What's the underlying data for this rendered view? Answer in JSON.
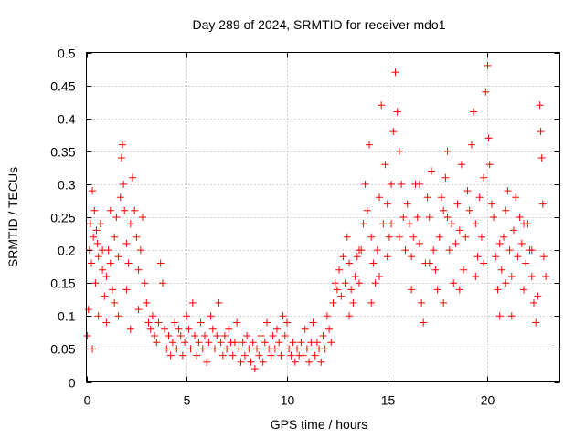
{
  "chart_data": {
    "type": "scatter",
    "title": "Day 289 of 2024, SRMTID for receiver mdo1",
    "xlabel": "GPS time / hours",
    "ylabel": "SRMTID / TECUs",
    "xlim": [
      0,
      23.6
    ],
    "ylim": [
      0,
      0.5
    ],
    "x_ticks": [
      0,
      5,
      10,
      15,
      20
    ],
    "x_tick_labels": [
      "0",
      "5",
      "10",
      "15",
      "20"
    ],
    "y_ticks": [
      0,
      0.05,
      0.1,
      0.15,
      0.2,
      0.25,
      0.3,
      0.35,
      0.4,
      0.45,
      0.5
    ],
    "y_tick_labels": [
      "0",
      "0.05",
      "0.1",
      "0.15",
      "0.2",
      "0.25",
      "0.3",
      "0.35",
      "0.4",
      "0.45",
      "0.5"
    ],
    "grid": true,
    "marker": "plus",
    "color": "#ff0000",
    "series": [
      {
        "name": "SRMTID",
        "points": [
          [
            0.05,
            0.07
          ],
          [
            0.1,
            0.11
          ],
          [
            0.15,
            0.2
          ],
          [
            0.2,
            0.24
          ],
          [
            0.25,
            0.18
          ],
          [
            0.3,
            0.29
          ],
          [
            0.35,
            0.22
          ],
          [
            0.4,
            0.26
          ],
          [
            0.45,
            0.15
          ],
          [
            0.5,
            0.23
          ],
          [
            0.55,
            0.21
          ],
          [
            0.6,
            0.19
          ],
          [
            0.7,
            0.24
          ],
          [
            0.8,
            0.17
          ],
          [
            0.9,
            0.13
          ],
          [
            1.0,
            0.16
          ],
          [
            1.1,
            0.2
          ],
          [
            1.2,
            0.18
          ],
          [
            1.3,
            0.14
          ],
          [
            1.4,
            0.22
          ],
          [
            1.5,
            0.25
          ],
          [
            1.6,
            0.19
          ],
          [
            1.7,
            0.28
          ],
          [
            1.75,
            0.34
          ],
          [
            1.8,
            0.36
          ],
          [
            1.85,
            0.3
          ],
          [
            1.9,
            0.26
          ],
          [
            2.0,
            0.21
          ],
          [
            2.1,
            0.18
          ],
          [
            2.2,
            0.24
          ],
          [
            2.3,
            0.31
          ],
          [
            2.4,
            0.26
          ],
          [
            2.5,
            0.22
          ],
          [
            2.6,
            0.17
          ],
          [
            2.7,
            0.2
          ],
          [
            2.8,
            0.25
          ],
          [
            2.9,
            0.15
          ],
          [
            3.0,
            0.12
          ],
          [
            3.1,
            0.09
          ],
          [
            3.2,
            0.08
          ],
          [
            0.3,
            0.05
          ],
          [
            0.6,
            0.1
          ],
          [
            1.0,
            0.09
          ],
          [
            1.4,
            0.12
          ],
          [
            1.6,
            0.1
          ],
          [
            2.2,
            0.08
          ],
          [
            2.6,
            0.11
          ],
          [
            1.2,
            0.26
          ],
          [
            0.8,
            0.2
          ],
          [
            2.0,
            0.14
          ],
          [
            3.3,
            0.1
          ],
          [
            3.4,
            0.07
          ],
          [
            3.5,
            0.06
          ],
          [
            3.6,
            0.09
          ],
          [
            3.7,
            0.18
          ],
          [
            3.8,
            0.15
          ],
          [
            3.9,
            0.08
          ],
          [
            4.0,
            0.05
          ],
          [
            4.1,
            0.07
          ],
          [
            4.2,
            0.04
          ],
          [
            4.3,
            0.06
          ],
          [
            4.4,
            0.09
          ],
          [
            4.5,
            0.05
          ],
          [
            4.6,
            0.08
          ],
          [
            4.7,
            0.07
          ],
          [
            4.8,
            0.04
          ],
          [
            4.9,
            0.06
          ],
          [
            5.0,
            0.1
          ],
          [
            5.1,
            0.08
          ],
          [
            5.2,
            0.05
          ],
          [
            5.3,
            0.12
          ],
          [
            5.4,
            0.07
          ],
          [
            5.5,
            0.04
          ],
          [
            5.6,
            0.06
          ],
          [
            5.7,
            0.09
          ],
          [
            5.8,
            0.05
          ],
          [
            5.9,
            0.07
          ],
          [
            6.0,
            0.03
          ],
          [
            6.1,
            0.06
          ],
          [
            6.2,
            0.1
          ],
          [
            6.3,
            0.08
          ],
          [
            6.4,
            0.05
          ],
          [
            6.5,
            0.07
          ],
          [
            6.6,
            0.12
          ],
          [
            6.7,
            0.06
          ],
          [
            6.8,
            0.04
          ],
          [
            6.9,
            0.07
          ],
          [
            7.0,
            0.05
          ],
          [
            7.1,
            0.08
          ],
          [
            7.2,
            0.06
          ],
          [
            7.3,
            0.04
          ],
          [
            7.4,
            0.06
          ],
          [
            7.5,
            0.09
          ],
          [
            7.6,
            0.05
          ],
          [
            7.7,
            0.03
          ],
          [
            7.8,
            0.06
          ],
          [
            7.9,
            0.04
          ],
          [
            8.0,
            0.07
          ],
          [
            8.1,
            0.05
          ],
          [
            8.2,
            0.03
          ],
          [
            8.3,
            0.06
          ],
          [
            8.4,
            0.02
          ],
          [
            8.5,
            0.05
          ],
          [
            8.6,
            0.04
          ],
          [
            8.7,
            0.07
          ],
          [
            8.8,
            0.03
          ],
          [
            8.9,
            0.06
          ],
          [
            9.0,
            0.09
          ],
          [
            9.1,
            0.05
          ],
          [
            9.2,
            0.04
          ],
          [
            9.3,
            0.07
          ],
          [
            9.4,
            0.05
          ],
          [
            9.5,
            0.08
          ],
          [
            9.6,
            0.06
          ],
          [
            9.7,
            0.04
          ],
          [
            9.8,
            0.1
          ],
          [
            9.9,
            0.07
          ],
          [
            10.0,
            0.09
          ],
          [
            10.1,
            0.05
          ],
          [
            10.2,
            0.04
          ],
          [
            10.3,
            0.06
          ],
          [
            10.4,
            0.03
          ],
          [
            10.5,
            0.05
          ],
          [
            10.6,
            0.04
          ],
          [
            10.7,
            0.06
          ],
          [
            10.8,
            0.04
          ],
          [
            10.9,
            0.08
          ],
          [
            11.0,
            0.05
          ],
          [
            11.1,
            0.03
          ],
          [
            11.2,
            0.06
          ],
          [
            11.3,
            0.09
          ],
          [
            11.4,
            0.04
          ],
          [
            11.5,
            0.06
          ],
          [
            11.6,
            0.05
          ],
          [
            11.7,
            0.03
          ],
          [
            11.8,
            0.07
          ],
          [
            11.9,
            0.05
          ],
          [
            12.0,
            0.1
          ],
          [
            12.1,
            0.08
          ],
          [
            12.2,
            0.06
          ],
          [
            12.3,
            0.12
          ],
          [
            12.4,
            0.15
          ],
          [
            12.5,
            0.14
          ],
          [
            12.6,
            0.17
          ],
          [
            12.7,
            0.13
          ],
          [
            12.8,
            0.19
          ],
          [
            12.9,
            0.15
          ],
          [
            13.0,
            0.22
          ],
          [
            13.1,
            0.18
          ],
          [
            13.2,
            0.14
          ],
          [
            13.3,
            0.12
          ],
          [
            13.4,
            0.16
          ],
          [
            13.5,
            0.19
          ],
          [
            13.6,
            0.15
          ],
          [
            13.7,
            0.2
          ],
          [
            13.8,
            0.24
          ],
          [
            13.9,
            0.3
          ],
          [
            14.0,
            0.26
          ],
          [
            14.1,
            0.36
          ],
          [
            14.2,
            0.22
          ],
          [
            14.3,
            0.18
          ],
          [
            14.4,
            0.15
          ],
          [
            14.5,
            0.2
          ],
          [
            14.6,
            0.28
          ],
          [
            14.7,
            0.42
          ],
          [
            14.8,
            0.24
          ],
          [
            14.9,
            0.33
          ],
          [
            15.0,
            0.27
          ],
          [
            15.1,
            0.22
          ],
          [
            15.2,
            0.3
          ],
          [
            15.3,
            0.38
          ],
          [
            15.4,
            0.47
          ],
          [
            15.5,
            0.41
          ],
          [
            15.6,
            0.35
          ],
          [
            15.7,
            0.3
          ],
          [
            15.8,
            0.25
          ],
          [
            15.9,
            0.2
          ],
          [
            16.0,
            0.27
          ],
          [
            16.1,
            0.24
          ],
          [
            16.2,
            0.19
          ],
          [
            16.3,
            0.22
          ],
          [
            16.4,
            0.3
          ],
          [
            16.5,
            0.25
          ],
          [
            16.6,
            0.21
          ],
          [
            16.7,
            0.12
          ],
          [
            16.8,
            0.09
          ],
          [
            16.9,
            0.18
          ],
          [
            17.0,
            0.28
          ],
          [
            17.1,
            0.25
          ],
          [
            17.2,
            0.32
          ],
          [
            17.3,
            0.2
          ],
          [
            17.4,
            0.17
          ],
          [
            17.5,
            0.14
          ],
          [
            17.6,
            0.22
          ],
          [
            17.7,
            0.28
          ],
          [
            17.8,
            0.26
          ],
          [
            17.9,
            0.31
          ],
          [
            18.0,
            0.35
          ],
          [
            18.1,
            0.2
          ],
          [
            18.2,
            0.24
          ],
          [
            18.3,
            0.15
          ],
          [
            18.4,
            0.21
          ],
          [
            18.5,
            0.27
          ],
          [
            18.6,
            0.23
          ],
          [
            18.7,
            0.33
          ],
          [
            18.8,
            0.17
          ],
          [
            18.9,
            0.22
          ],
          [
            19.0,
            0.29
          ],
          [
            19.1,
            0.26
          ],
          [
            19.2,
            0.36
          ],
          [
            19.3,
            0.41
          ],
          [
            19.4,
            0.24
          ],
          [
            19.5,
            0.19
          ],
          [
            19.6,
            0.28
          ],
          [
            19.7,
            0.22
          ],
          [
            19.8,
            0.31
          ],
          [
            19.9,
            0.44
          ],
          [
            20.0,
            0.48
          ],
          [
            20.05,
            0.37
          ],
          [
            20.1,
            0.33
          ],
          [
            20.2,
            0.27
          ],
          [
            20.3,
            0.25
          ],
          [
            20.4,
            0.19
          ],
          [
            20.5,
            0.14
          ],
          [
            20.6,
            0.1
          ],
          [
            20.7,
            0.17
          ],
          [
            20.8,
            0.22
          ],
          [
            20.9,
            0.26
          ],
          [
            21.0,
            0.29
          ],
          [
            21.1,
            0.2
          ],
          [
            21.2,
            0.16
          ],
          [
            21.3,
            0.23
          ],
          [
            21.4,
            0.28
          ],
          [
            21.5,
            0.19
          ],
          [
            21.6,
            0.25
          ],
          [
            21.7,
            0.21
          ],
          [
            21.8,
            0.14
          ],
          [
            21.9,
            0.18
          ],
          [
            22.0,
            0.24
          ],
          [
            22.1,
            0.2
          ],
          [
            22.2,
            0.16
          ],
          [
            22.3,
            0.12
          ],
          [
            22.4,
            0.09
          ],
          [
            22.5,
            0.13
          ],
          [
            22.6,
            0.42
          ],
          [
            22.65,
            0.38
          ],
          [
            22.7,
            0.34
          ],
          [
            22.75,
            0.27
          ],
          [
            22.8,
            0.19
          ],
          [
            22.9,
            0.16
          ],
          [
            14.2,
            0.12
          ],
          [
            14.6,
            0.16
          ],
          [
            15.0,
            0.19
          ],
          [
            15.6,
            0.22
          ],
          [
            16.2,
            0.14
          ],
          [
            17.1,
            0.18
          ],
          [
            17.8,
            0.12
          ],
          [
            18.6,
            0.14
          ],
          [
            19.4,
            0.16
          ],
          [
            20.6,
            0.21
          ],
          [
            21.2,
            0.1
          ],
          [
            21.8,
            0.24
          ],
          [
            22.2,
            0.2
          ],
          [
            13.1,
            0.1
          ],
          [
            13.6,
            0.2
          ],
          [
            19.8,
            0.18
          ],
          [
            18.0,
            0.25
          ],
          [
            16.6,
            0.3
          ],
          [
            15.2,
            0.24
          ],
          [
            20.9,
            0.15
          ]
        ]
      }
    ]
  }
}
